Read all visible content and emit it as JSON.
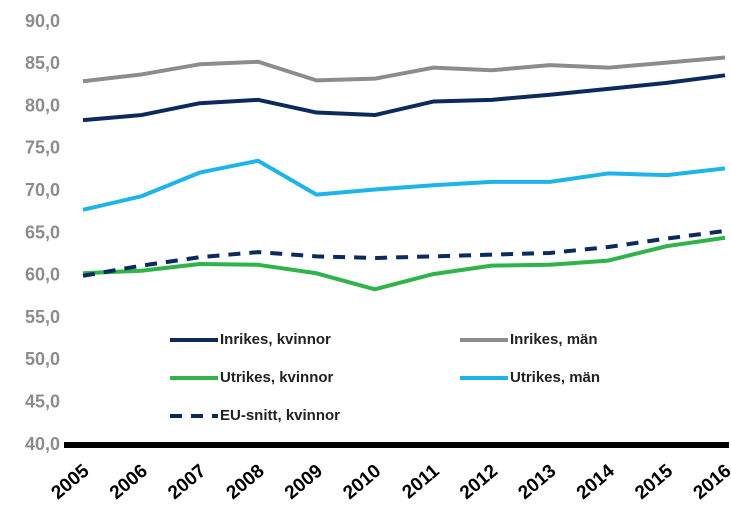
{
  "chart_data": {
    "type": "line",
    "categories": [
      "2005",
      "2006",
      "2007",
      "2008",
      "2009",
      "2010",
      "2011",
      "2012",
      "2013",
      "2014",
      "2015",
      "2016"
    ],
    "series": [
      {
        "name": "Inrikes, kvinnor",
        "color": "#0d2a5c",
        "line_style": "solid",
        "values": [
          78.4,
          79.0,
          80.4,
          80.8,
          79.3,
          79.0,
          80.6,
          80.8,
          81.4,
          82.1,
          82.8,
          83.7
        ]
      },
      {
        "name": "Inrikes, män",
        "color": "#8c8c8c",
        "line_style": "solid",
        "values": [
          83.0,
          83.8,
          85.0,
          85.3,
          83.1,
          83.3,
          84.6,
          84.3,
          84.9,
          84.6,
          85.2,
          85.8
        ]
      },
      {
        "name": "Utrikes, kvinnor",
        "color": "#2fb34a",
        "line_style": "solid",
        "values": [
          60.3,
          60.6,
          61.4,
          61.3,
          60.3,
          58.4,
          60.2,
          61.2,
          61.3,
          61.8,
          63.5,
          64.5
        ]
      },
      {
        "name": "Utrikes, män",
        "color": "#1eb4ea",
        "line_style": "solid",
        "values": [
          67.8,
          69.4,
          72.2,
          73.6,
          69.6,
          70.2,
          70.7,
          71.1,
          71.1,
          72.1,
          71.9,
          72.7
        ]
      },
      {
        "name": "EU-snitt, kvinnor",
        "color": "#0d2a5c",
        "line_style": "dashed",
        "values": [
          60.0,
          61.2,
          62.2,
          62.8,
          62.3,
          62.1,
          62.3,
          62.5,
          62.7,
          63.4,
          64.4,
          65.3
        ]
      }
    ],
    "ylim": [
      40,
      90
    ],
    "yticks": [
      {
        "value": 40,
        "label": "40,0"
      },
      {
        "value": 45,
        "label": "45,0"
      },
      {
        "value": 50,
        "label": "50,0"
      },
      {
        "value": 55,
        "label": "55,0"
      },
      {
        "value": 60,
        "label": "60,0"
      },
      {
        "value": 65,
        "label": "65,0"
      },
      {
        "value": 70,
        "label": "70,0"
      },
      {
        "value": 75,
        "label": "75,0"
      },
      {
        "value": 80,
        "label": "80,0"
      },
      {
        "value": 85,
        "label": "85,0"
      },
      {
        "value": 90,
        "label": "90,0"
      }
    ],
    "grid": false,
    "legend": "lower center"
  }
}
